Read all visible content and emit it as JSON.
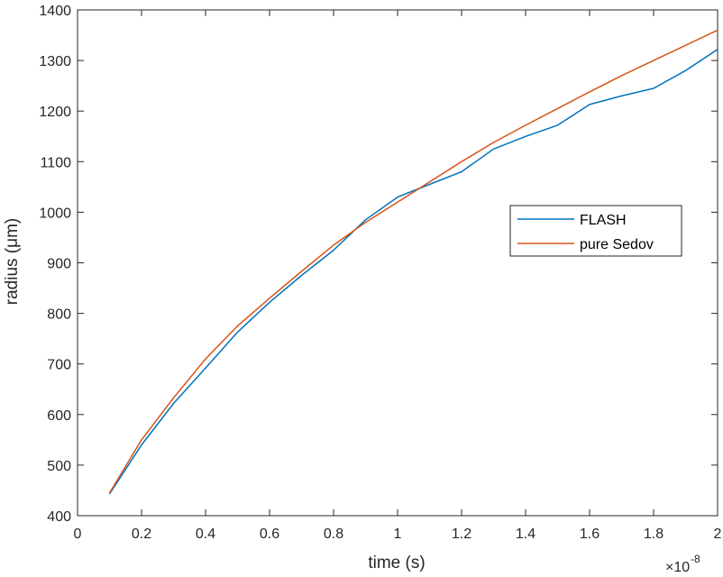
{
  "chart_data": {
    "type": "line",
    "title": "",
    "xlabel": "time (s)",
    "ylabel": "radius (μm)",
    "x_exponent_label": "×10",
    "x_exponent_power": "-8",
    "xlim": [
      0,
      2
    ],
    "ylim": [
      400,
      1400
    ],
    "xticks": [
      0,
      0.2,
      0.4,
      0.6,
      0.8,
      1,
      1.2,
      1.4,
      1.6,
      1.8,
      2
    ],
    "xtick_labels": [
      "0",
      "0.2",
      "0.4",
      "0.6",
      "0.8",
      "1",
      "1.2",
      "1.4",
      "1.6",
      "1.8",
      "2"
    ],
    "yticks": [
      400,
      500,
      600,
      700,
      800,
      900,
      1000,
      1100,
      1200,
      1300,
      1400
    ],
    "ytick_labels": [
      "400",
      "500",
      "600",
      "700",
      "800",
      "900",
      "1000",
      "1100",
      "1200",
      "1300",
      "1400"
    ],
    "grid": false,
    "legend_position": "center-right",
    "series": [
      {
        "name": "FLASH",
        "color": "#0072BD",
        "x": [
          0.1,
          0.2,
          0.3,
          0.4,
          0.5,
          0.6,
          0.7,
          0.8,
          0.9,
          1.0,
          1.1,
          1.2,
          1.3,
          1.4,
          1.5,
          1.6,
          1.7,
          1.8,
          1.9,
          2.0
        ],
        "y": [
          443,
          540,
          622,
          692,
          763,
          822,
          875,
          925,
          985,
          1030,
          1055,
          1080,
          1125,
          1150,
          1172,
          1213,
          1230,
          1245,
          1280,
          1322
        ]
      },
      {
        "name": "pure Sedov",
        "color": "#D95319",
        "x": [
          0.1,
          0.2,
          0.3,
          0.4,
          0.5,
          0.6,
          0.7,
          0.8,
          0.9,
          1.0,
          1.1,
          1.2,
          1.3,
          1.4,
          1.5,
          1.6,
          1.7,
          1.8,
          1.9,
          2.0
        ],
        "y": [
          445,
          550,
          633,
          710,
          775,
          830,
          883,
          935,
          980,
          1020,
          1060,
          1100,
          1138,
          1172,
          1205,
          1238,
          1270,
          1300,
          1330,
          1360
        ]
      }
    ]
  }
}
